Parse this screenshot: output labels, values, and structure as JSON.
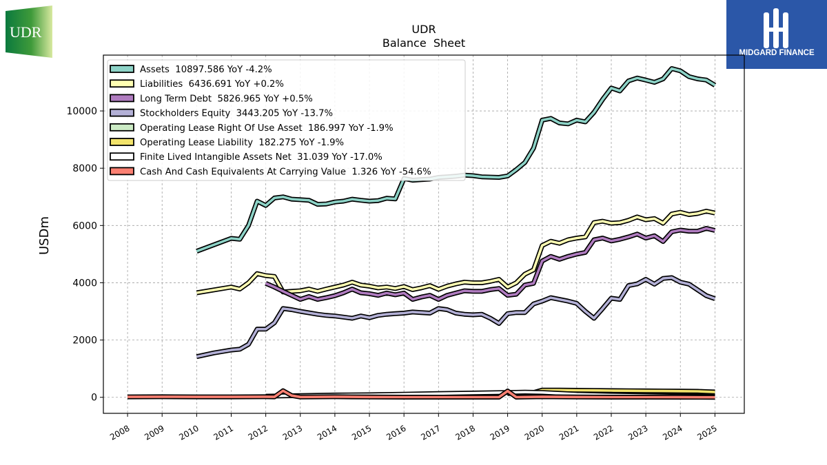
{
  "logos": {
    "left_text": "UDR",
    "right_text": "MIDGARD FINANCE"
  },
  "chart_data": {
    "type": "line",
    "title": "UDR",
    "subtitle": "Balance  Sheet",
    "xlabel": "",
    "ylabel": "USDm",
    "xlim": [
      2007.3,
      2025.85
    ],
    "ylim": [
      -560,
      11950
    ],
    "x_ticks": [
      2008,
      2009,
      2010,
      2011,
      2012,
      2013,
      2014,
      2015,
      2016,
      2017,
      2018,
      2019,
      2020,
      2021,
      2022,
      2023,
      2024,
      2025
    ],
    "x_tick_labels": [
      "2008",
      "2009",
      "2010",
      "2011",
      "2012",
      "2013",
      "2014",
      "2015",
      "2016",
      "2017",
      "2018",
      "2019",
      "2020",
      "2021",
      "2022",
      "2023",
      "2024",
      "2025"
    ],
    "y_ticks": [
      0,
      2000,
      4000,
      6000,
      8000,
      10000
    ],
    "y_tick_labels": [
      "0",
      "2000",
      "4000",
      "6000",
      "8000",
      "10000"
    ],
    "grid": true,
    "legend_position": "top-left",
    "series": [
      {
        "name": "Assets",
        "legend": "Assets  10897.586 YoY -4.2%",
        "color": "#8dd3c7",
        "x": [
          2010.0,
          2011.0,
          2011.25,
          2011.5,
          2011.75,
          2012.0,
          2012.25,
          2012.5,
          2012.75,
          2013.0,
          2013.25,
          2013.5,
          2013.75,
          2014.0,
          2014.25,
          2014.5,
          2014.75,
          2015.0,
          2015.25,
          2015.5,
          2015.75,
          2016.0,
          2016.25,
          2016.5,
          2016.75,
          2017.0,
          2017.25,
          2017.5,
          2017.75,
          2018.0,
          2018.25,
          2018.5,
          2018.75,
          2019.0,
          2019.25,
          2019.5,
          2019.75,
          2020.0,
          2020.25,
          2020.5,
          2020.75,
          2021.0,
          2021.25,
          2021.5,
          2021.75,
          2022.0,
          2022.25,
          2022.5,
          2022.75,
          2023.0,
          2023.25,
          2023.5,
          2023.75,
          2024.0,
          2024.25,
          2024.5,
          2024.75,
          2025.0
        ],
        "values": [
          5100,
          5550,
          5520,
          6000,
          6850,
          6700,
          6960,
          7000,
          6920,
          6900,
          6880,
          6740,
          6750,
          6820,
          6850,
          6920,
          6880,
          6850,
          6870,
          6950,
          6930,
          7640,
          7580,
          7600,
          7620,
          7680,
          7700,
          7720,
          7760,
          7740,
          7700,
          7690,
          7680,
          7730,
          7950,
          8200,
          8700,
          9680,
          9740,
          9580,
          9550,
          9680,
          9620,
          9950,
          10400,
          10800,
          10700,
          11050,
          11150,
          11080,
          11000,
          11120,
          11480,
          11400,
          11200,
          11120,
          11080,
          10897.586
        ]
      },
      {
        "name": "Liabilities",
        "legend": "Liabilities  6436.691 YoY +0.2%",
        "color": "#ffffb3",
        "x": [
          2010.0,
          2011.0,
          2011.25,
          2011.5,
          2011.75,
          2012.0,
          2012.25,
          2012.5,
          2012.75,
          2013.0,
          2013.25,
          2013.5,
          2013.75,
          2014.0,
          2014.25,
          2014.5,
          2014.75,
          2015.0,
          2015.25,
          2015.5,
          2015.75,
          2016.0,
          2016.25,
          2016.5,
          2016.75,
          2017.0,
          2017.25,
          2017.5,
          2017.75,
          2018.0,
          2018.25,
          2018.5,
          2018.75,
          2019.0,
          2019.25,
          2019.5,
          2019.75,
          2020.0,
          2020.25,
          2020.5,
          2020.75,
          2021.0,
          2021.25,
          2021.5,
          2021.75,
          2022.0,
          2022.25,
          2022.5,
          2022.75,
          2023.0,
          2023.25,
          2023.5,
          2023.75,
          2024.0,
          2024.25,
          2024.5,
          2024.75,
          2025.0
        ],
        "values": [
          3650,
          3850,
          3780,
          4000,
          4320,
          4250,
          4220,
          3680,
          3700,
          3720,
          3780,
          3700,
          3780,
          3850,
          3920,
          4020,
          3920,
          3880,
          3820,
          3850,
          3800,
          3870,
          3760,
          3820,
          3900,
          3770,
          3880,
          3960,
          4020,
          4000,
          4000,
          4050,
          4120,
          3850,
          4000,
          4300,
          4450,
          5300,
          5450,
          5380,
          5500,
          5560,
          5600,
          6100,
          6150,
          6080,
          6100,
          6180,
          6300,
          6200,
          6240,
          6080,
          6400,
          6460,
          6380,
          6420,
          6500,
          6436.691
        ]
      },
      {
        "name": "Long Term Debt",
        "legend": "Long Term Debt  5826.965 YoY +0.5%",
        "color": "#bebada",
        "fill": "#b07cc0",
        "x": [
          2012.0,
          2012.25,
          2012.5,
          2012.75,
          2013.0,
          2013.25,
          2013.5,
          2013.75,
          2014.0,
          2014.25,
          2014.5,
          2014.75,
          2015.0,
          2015.25,
          2015.5,
          2015.75,
          2016.0,
          2016.25,
          2016.5,
          2016.75,
          2017.0,
          2017.25,
          2017.5,
          2017.75,
          2018.0,
          2018.25,
          2018.5,
          2018.75,
          2019.0,
          2019.25,
          2019.5,
          2019.75,
          2020.0,
          2020.25,
          2020.5,
          2020.75,
          2021.0,
          2021.25,
          2021.5,
          2021.75,
          2022.0,
          2022.25,
          2022.5,
          2022.75,
          2023.0,
          2023.25,
          2023.5,
          2023.75,
          2024.0,
          2024.25,
          2024.5,
          2024.75,
          2025.0
        ],
        "values": [
          3980,
          3850,
          3700,
          3560,
          3420,
          3520,
          3420,
          3480,
          3550,
          3650,
          3780,
          3650,
          3620,
          3560,
          3640,
          3580,
          3640,
          3420,
          3500,
          3560,
          3420,
          3560,
          3640,
          3720,
          3700,
          3700,
          3760,
          3800,
          3560,
          3600,
          3920,
          3980,
          4760,
          4920,
          4820,
          4920,
          5000,
          5060,
          5500,
          5560,
          5460,
          5520,
          5600,
          5700,
          5560,
          5640,
          5440,
          5780,
          5840,
          5800,
          5800,
          5900,
          5826.965
        ]
      },
      {
        "name": "Stockholders Equity",
        "legend": "Stockholders Equity  3443.205 YoY -13.7%",
        "color": "#b3b0d6",
        "x": [
          2010.0,
          2010.5,
          2011.0,
          2011.25,
          2011.5,
          2011.75,
          2012.0,
          2012.25,
          2012.5,
          2012.75,
          2013.0,
          2013.25,
          2013.5,
          2013.75,
          2014.0,
          2014.25,
          2014.5,
          2014.75,
          2015.0,
          2015.25,
          2015.5,
          2015.75,
          2016.0,
          2016.25,
          2016.5,
          2016.75,
          2017.0,
          2017.25,
          2017.5,
          2017.75,
          2018.0,
          2018.25,
          2018.5,
          2018.75,
          2019.0,
          2019.25,
          2019.5,
          2019.75,
          2020.0,
          2020.25,
          2020.5,
          2020.75,
          2021.0,
          2021.25,
          2021.5,
          2021.75,
          2022.0,
          2022.25,
          2022.5,
          2022.75,
          2023.0,
          2023.25,
          2023.5,
          2023.75,
          2024.0,
          2024.25,
          2024.5,
          2024.75,
          2025.0
        ],
        "values": [
          1420,
          1550,
          1650,
          1680,
          1850,
          2380,
          2380,
          2600,
          3100,
          3060,
          3000,
          2950,
          2900,
          2860,
          2840,
          2800,
          2760,
          2840,
          2780,
          2860,
          2900,
          2920,
          2940,
          2980,
          2960,
          2940,
          3100,
          3060,
          2940,
          2900,
          2880,
          2900,
          2760,
          2580,
          2920,
          2960,
          2960,
          3260,
          3360,
          3480,
          3420,
          3360,
          3280,
          3000,
          2760,
          3100,
          3460,
          3420,
          3900,
          3960,
          4120,
          3950,
          4150,
          4180,
          4020,
          3950,
          3750,
          3550,
          3443.205
        ]
      },
      {
        "name": "Operating Lease Right Of Use Asset",
        "legend": "Operating Lease Right Of Use Asset  186.997 YoY -1.9%",
        "color": "#ccebc5",
        "x": [
          2019.0,
          2019.25,
          2019.5,
          2019.75,
          2020.0,
          2020.5,
          2021.0,
          2021.5,
          2022.0,
          2022.5,
          2023.0,
          2023.5,
          2024.0,
          2024.5,
          2025.0
        ],
        "values": [
          140,
          150,
          160,
          170,
          200,
          200,
          198,
          196,
          195,
          194,
          193,
          192,
          191,
          189,
          186.997
        ]
      },
      {
        "name": "Operating Lease Liability",
        "legend": "Operating Lease Liability  182.275 YoY -1.9%",
        "color": "#f2e36b",
        "x": [
          2019.0,
          2019.25,
          2019.5,
          2019.75,
          2020.0,
          2020.5,
          2021.0,
          2021.5,
          2022.0,
          2022.5,
          2023.0,
          2023.5,
          2024.0,
          2024.5,
          2025.0
        ],
        "values": [
          130,
          140,
          150,
          170,
          250,
          250,
          245,
          240,
          235,
          230,
          225,
          220,
          215,
          210,
          182.275
        ]
      },
      {
        "name": "Finite Lived Intangible Assets Net",
        "legend": "Finite Lived Intangible Assets Net  31.039 YoY -17.0%",
        "color": "#ffffff",
        "x": [
          2012.0,
          2013.0,
          2014.0,
          2015.0,
          2016.0,
          2017.0,
          2018.0,
          2019.0,
          2019.5,
          2020.0,
          2020.5,
          2021.0,
          2022.0,
          2023.0,
          2024.0,
          2025.0
        ],
        "values": [
          40,
          60,
          80,
          90,
          110,
          130,
          150,
          170,
          180,
          170,
          140,
          110,
          80,
          60,
          40,
          31.039
        ]
      },
      {
        "name": "Cash And Cash Equivalents At Carrying Value",
        "legend": "Cash And Cash Equivalents At Carrying Value  1.326 YoY -54.6%",
        "color": "#fb8072",
        "x": [
          2008.0,
          2009.0,
          2010.0,
          2011.0,
          2012.0,
          2012.25,
          2012.5,
          2012.75,
          2013.0,
          2014.0,
          2015.0,
          2016.0,
          2017.0,
          2018.0,
          2018.75,
          2019.0,
          2019.25,
          2019.5,
          2020.0,
          2021.0,
          2022.0,
          2023.0,
          2024.0,
          2025.0
        ],
        "values": [
          15,
          20,
          15,
          15,
          20,
          15,
          230,
          60,
          10,
          20,
          10,
          5,
          5,
          5,
          5,
          220,
          5,
          10,
          20,
          10,
          5,
          5,
          3,
          1.326
        ]
      }
    ]
  }
}
